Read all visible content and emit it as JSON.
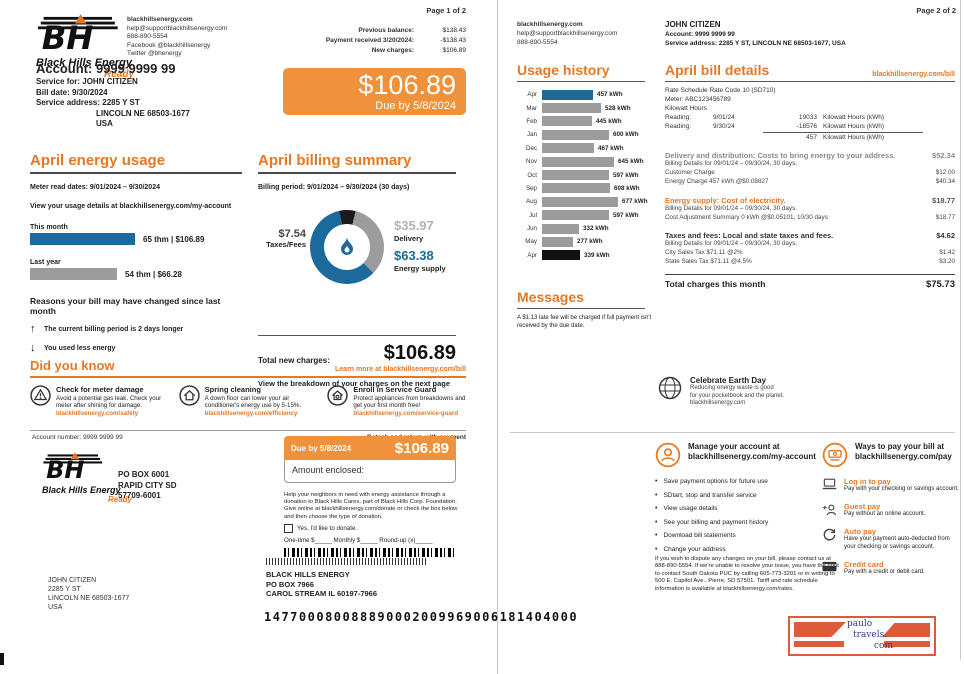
{
  "colors": {
    "accent": "#E87722",
    "box_orange": "#F0913B",
    "bar_blue": "#1B6A9B",
    "bar_gray": "#9C9C9C",
    "bar_black": "#111111",
    "travel_red": "#DD5B3A",
    "travel_blue": "#27418F"
  },
  "page1": {
    "page_label": "Page 1 of 2",
    "brand": {
      "name": "Black Hills Energy",
      "tagline": "Ready"
    },
    "contact": {
      "website": "blackhillsenergy.com",
      "email": "help@supportblackhillsenergy.com",
      "phone": "888-890-5554",
      "facebook": "Facebook   @blackhillsenergy",
      "twitter": "Twitter   @bhenergy"
    },
    "balance": {
      "rows": [
        {
          "label": "Previous balance:",
          "value": "$138.43"
        },
        {
          "label": "Payment received 3/20/2024:",
          "value": "-$138.43"
        },
        {
          "label": "New charges:",
          "value": "$106.89"
        }
      ]
    },
    "amount_box": {
      "amount": "$106.89",
      "due": "Due by 5/8/2024"
    },
    "account": {
      "account_line": "Account: 9999 9999 99",
      "service_for": "Service for: JOHN CITIZEN",
      "bill_date": "Bill date: 9/30/2024",
      "service_address": "Service address: 2285 Y ST",
      "address_line2": "LINCOLN NE 68503-1677",
      "address_line3": "USA"
    },
    "energy_usage": {
      "title": "April energy usage",
      "meter_dates": "Meter read dates: 9/01/2024 – 9/30/2024",
      "details_link": "View your usage details at blackhillsenergy.com/my-account",
      "this_month_label": "This month",
      "this_month_value": "65 thm | $106.89",
      "last_year_label": "Last year",
      "last_year_value": "54 thm | $66.28",
      "reasons_title": "Reasons your bill may have changed since last month",
      "reasons": [
        {
          "arrow": "↑",
          "text": "The current billing period is 2 days longer"
        },
        {
          "arrow": "↓",
          "text": "You used less energy"
        }
      ]
    },
    "billing_summary": {
      "title": "April billing summary",
      "period": "Billing period: 9/01/2024 – 9/30/2024 (30 days)",
      "taxes_value": "$7.54",
      "taxes_label": "Taxes/Fees",
      "delivery_value": "$35.97",
      "delivery_label": "Delivery",
      "energy_value": "$63.38",
      "energy_label": "Energy supply",
      "total_label": "Total new charges:",
      "total_value": "$106.89",
      "footnote": "View the breakdown of your charges on the next page"
    },
    "did_you_know": {
      "title": "Did you know",
      "link": "Learn more at blackhillsenergy.com/bill",
      "tips": [
        {
          "title": "Check for meter damage",
          "body": "Avoid a potential gas leak. Check your meter after shining for damage.",
          "link": "blackhillsenergy.com/safety"
        },
        {
          "title": "Spring cleaning",
          "body": "A down floor can lower your air conditioner's energy use by 5-15%.",
          "link": "blackhillsenergy.com/efficiency"
        },
        {
          "title": "Enroll in Service Guard",
          "body": "Protect appliances from breakdowns and get your first month free!",
          "link": "blackhillsenergy.com/service-guard"
        }
      ]
    },
    "stub": {
      "account_label": "Account number:  9999 9999 99",
      "detach_label": "Detach and return with payment",
      "po_line1": "PO BOX 6001",
      "po_line2": "RAPID CITY SD",
      "po_line3": "57709-6001",
      "due_label": "Due by 5/8/2024",
      "amount": "$106.89",
      "amount_enclosed": "Amount enclosed:",
      "donation_text": "Help your neighbors in need with energy assistance through a donation to Black Hills Cares, part of Black Hills Corp. Foundation. Give online at blackhillsenergy.com/donate or check the box below and then choose the type of donation.",
      "donate_checkbox": "Yes, I'd like to donate.",
      "donate_options": "One-time $_____     Monthly $_____     Round-up (x)_____",
      "customer_address": [
        "JOHN CITIZEN",
        "2285 Y ST",
        "LINCOLN NE 68503-1677",
        "USA"
      ],
      "remit_address": [
        "BLACK HILLS ENERGY",
        "PO BOX 7966",
        "CAROL STREAM IL 60197-7966"
      ],
      "ocr_line": "147700080088890002009969006181404000"
    }
  },
  "page2": {
    "page_label": "Page 2 of 2",
    "contact": {
      "website": "blackhillsenergy.com",
      "email": "help@supportblackhillsenergy.com",
      "phone": "888-890-5554"
    },
    "customer": {
      "name": "JOHN CITIZEN",
      "account": "Account:  9999 9999 99",
      "service": "Service address:  2285 Y ST, LINCOLN NE 68503-1677,   USA"
    },
    "usage_history": {
      "title": "Usage history",
      "rows": [
        {
          "month": "Apr",
          "value": "457 kWh"
        },
        {
          "month": "Mar",
          "value": "528 kWh"
        },
        {
          "month": "Feb",
          "value": "445 kWh"
        },
        {
          "month": "Jan",
          "value": "600 kWh"
        },
        {
          "month": "Dec",
          "value": "467 kWh"
        },
        {
          "month": "Nov",
          "value": "645 kWh"
        },
        {
          "month": "Oct",
          "value": "597 kWh"
        },
        {
          "month": "Sep",
          "value": "608 kWh"
        },
        {
          "month": "Aug",
          "value": "677 kWh"
        },
        {
          "month": "Jul",
          "value": "597 kWh"
        },
        {
          "month": "Jun",
          "value": "332 kWh"
        },
        {
          "month": "May",
          "value": "277 kWh"
        },
        {
          "month": "Apr",
          "value": "339 kWh"
        }
      ]
    },
    "messages": {
      "title": "Messages",
      "body": "A $1.13 late fee will be charged if full payment isn't received by the due date."
    },
    "bill_details": {
      "title": "April bill details",
      "link": "blackhillsenergy.com/bill",
      "rate_line": "Rate Schedule Rate Code 10 (SD710)",
      "meter_line": "Meter:  ABC123456789",
      "kwh_line": "Kilowatt Hours",
      "readings": [
        {
          "label": "Reading:",
          "date": "9/01/24",
          "value": "19033",
          "unit": "Kilowatt Hours (kWh)"
        },
        {
          "label": "Reading:",
          "date": "9/30/24",
          "value": "-18576",
          "unit": "Kilowatt Hours (kWh)"
        }
      ],
      "net_value": "457",
      "net_unit": "Kilowatt Hours (kWh)",
      "sections": [
        {
          "title": "Delivery and distribution:  Costs to bring energy to your address.",
          "amount": "$52.34",
          "lines": [
            {
              "label": "Billing Details for 09/01/24  – 09/30/24,  30 days.",
              "amount": ""
            },
            {
              "label": "Customer Charge",
              "amount": "$12.00"
            },
            {
              "label": "Energy Charge  457 kWh @$0.08827",
              "amount": "$40.34"
            }
          ]
        },
        {
          "title": "Energy supply: Cost of electricity.",
          "amount": "$18.77",
          "lines": [
            {
              "label": "Billing Details for 09/01/24  – 09/30/24,  30 days.",
              "amount": ""
            },
            {
              "label": "Cost Adjustment Summary 0 kWh @$0.05101, 10/30 days",
              "amount": "$18.77"
            }
          ]
        },
        {
          "title": "Taxes and fees: Local and state taxes and fees.",
          "amount": "$4.62",
          "lines": [
            {
              "label": "Billing Details for 09/01/24  – 09/30/24,  30 days.",
              "amount": ""
            },
            {
              "label": "City Sales Tax $71.11 @2%",
              "amount": "$1.42"
            },
            {
              "label": "State Sales Tax $71.11 @4.5%",
              "amount": "$3.20"
            }
          ]
        }
      ],
      "total_label": "Total charges this month",
      "total_amount": "$75.73"
    },
    "earth_day": {
      "title": "Celebrate Earth Day",
      "line1": "Reducing energy waste is good",
      "line2": "for your pocketbook and the planet.",
      "line3": "blackhillsenergy.com"
    },
    "manage": {
      "title_1": "Manage your account at",
      "title_2": "blackhillsenergy.com/my-account",
      "items": [
        "Save payment options for future use",
        "SDtart, stop and transfer service",
        "View usage details",
        "See your billing and payment history",
        "Download bill statements",
        "Change your address"
      ]
    },
    "ways_to_pay": {
      "title_1": "Ways to pay your bill at",
      "title_2": "blackhillsenergy.com/pay",
      "methods": [
        {
          "title": "Log in to pay",
          "desc": "Pay with your checking or savings account."
        },
        {
          "title": "Guest pay",
          "desc": "Pay without an online account."
        },
        {
          "title": "Auto pay",
          "desc": "Have your payment auto-deducted from your checking or savings account."
        },
        {
          "title": "Credit card",
          "desc": "Pay with a credit or debit card."
        }
      ]
    },
    "dispute_text": "If you wish to dispute any changes on your bill, please contact us at 888-890-5554. If we're unable to resolve your issue, you have the right to contact South Dakota PUC by calling 605-773-3201 or in writing to 500 E. Capitol Ave., Pierre, SD 57501. Tariff and rate schedule information is available at blackhillsenergy.com/rates.",
    "travel_logo": {
      "line1": "paulo",
      "line2": "travels.",
      "line3": "com"
    }
  },
  "chart_data": [
    {
      "type": "bar",
      "title": "Usage history",
      "orientation": "horizontal",
      "categories": [
        "Apr",
        "Mar",
        "Feb",
        "Jan",
        "Dec",
        "Nov",
        "Oct",
        "Sep",
        "Aug",
        "Jul",
        "Jun",
        "May",
        "Apr"
      ],
      "values": [
        457,
        528,
        445,
        600,
        467,
        645,
        597,
        608,
        677,
        597,
        332,
        277,
        339
      ],
      "unit": "kWh",
      "bar_colors": [
        "#1B6A9B",
        "#9C9C9C",
        "#9C9C9C",
        "#9C9C9C",
        "#9C9C9C",
        "#9C9C9C",
        "#9C9C9C",
        "#9C9C9C",
        "#9C9C9C",
        "#9C9C9C",
        "#9C9C9C",
        "#9C9C9C",
        "#111111"
      ]
    },
    {
      "type": "pie",
      "title": "April billing summary",
      "style": "donut",
      "total": 106.89,
      "slices": [
        {
          "label": "Taxes/Fees",
          "value": 7.54,
          "color": "#1a1a1a"
        },
        {
          "label": "Delivery",
          "value": 35.97,
          "color": "#9C9C9C"
        },
        {
          "label": "Energy supply",
          "value": 63.38,
          "color": "#1B6A9B"
        }
      ]
    },
    {
      "type": "bar",
      "title": "April energy usage",
      "orientation": "horizontal",
      "categories": [
        "This month",
        "Last year"
      ],
      "values": [
        65,
        54
      ],
      "unit": "thm",
      "bar_colors": [
        "#1B6A9B",
        "#9C9C9C"
      ]
    }
  ]
}
